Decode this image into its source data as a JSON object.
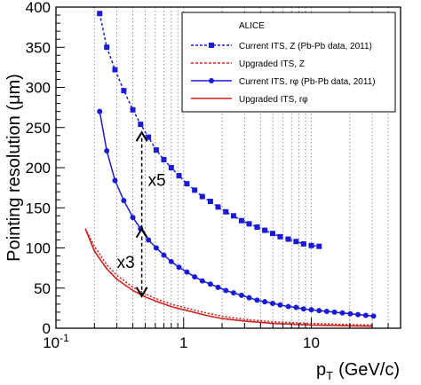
{
  "chart_data": {
    "type": "line",
    "xscale": "log",
    "xlim": [
      0.1,
      50
    ],
    "ylim": [
      0,
      400
    ],
    "xlabel": "p",
    "xlabel_sub": "T",
    "xlabel_unit": "(GeV/c)",
    "ylabel": "Pointing resolution  (μm)",
    "x_ticks": [
      {
        "value": 0.1,
        "label": "10",
        "sup": "-1"
      },
      {
        "value": 1,
        "label": "1",
        "sup": ""
      },
      {
        "value": 10,
        "label": "10",
        "sup": ""
      }
    ],
    "y_ticks": [
      0,
      50,
      100,
      150,
      200,
      250,
      300,
      350,
      400
    ],
    "grid": "vertical-dotted",
    "legend": {
      "position": "top-right",
      "header": "ALICE",
      "entries": [
        {
          "label": "Current ITS, Z (Pb-Pb data, 2011)",
          "series": 0
        },
        {
          "label": "Upgraded ITS, Z",
          "series": 1
        },
        {
          "label": "Current ITS, rφ (Pb-Pb data, 2011)",
          "series": 2
        },
        {
          "label": "Upgraded ITS, rφ",
          "series": 3
        }
      ]
    },
    "annotations": [
      {
        "text": "x5",
        "x_from": 0.47,
        "y_from": 124,
        "y_to": 244
      },
      {
        "text": "x3",
        "x_from": 0.47,
        "y_from": 40,
        "y_to": 124
      }
    ],
    "series": [
      {
        "name": "Current ITS, Z (Pb-Pb data, 2011)",
        "color": "#1a1adb",
        "dash": "dotted",
        "marker": "square",
        "x": [
          0.22,
          0.25,
          0.29,
          0.34,
          0.4,
          0.46,
          0.53,
          0.61,
          0.7,
          0.8,
          0.92,
          1.06,
          1.22,
          1.4,
          1.62,
          1.86,
          2.14,
          2.46,
          2.84,
          3.26,
          3.76,
          4.32,
          4.98,
          5.7,
          6.6,
          7.6,
          8.7,
          10.0,
          11.5
        ],
        "y": [
          392,
          350,
          322,
          296,
          272,
          254,
          238,
          222,
          210,
          200,
          190,
          180,
          172,
          164,
          158,
          151,
          145,
          140,
          134,
          130,
          126,
          122,
          118,
          114,
          111,
          108,
          105,
          103,
          102
        ]
      },
      {
        "name": "Upgraded ITS, Z",
        "color": "#d9201c",
        "dash": "dotted",
        "marker": "none",
        "x": [
          0.17,
          0.2,
          0.25,
          0.3,
          0.4,
          0.5,
          0.6,
          0.8,
          1.0,
          1.5,
          2.0,
          3.0,
          5.0,
          10.0,
          20.0,
          30.0
        ],
        "y": [
          124,
          102,
          79,
          66,
          51,
          43,
          37,
          30,
          26,
          19,
          15,
          11,
          8,
          6,
          4.5,
          4
        ]
      },
      {
        "name": "Current ITS, rφ (Pb-Pb data, 2011)",
        "color": "#1a1adb",
        "dash": "solid",
        "marker": "circle",
        "x": [
          0.22,
          0.25,
          0.29,
          0.34,
          0.4,
          0.46,
          0.53,
          0.61,
          0.7,
          0.8,
          0.92,
          1.06,
          1.22,
          1.4,
          1.62,
          1.86,
          2.14,
          2.46,
          2.84,
          3.26,
          3.76,
          4.32,
          4.98,
          5.7,
          6.6,
          7.6,
          8.7,
          10.0,
          11.5,
          13.2,
          15.2,
          17.5,
          20.2,
          23.2,
          26.7,
          30.7
        ],
        "y": [
          270,
          221,
          184,
          159,
          138,
          124,
          110,
          100,
          91,
          83,
          76,
          70,
          64,
          59,
          55,
          51,
          47,
          44,
          41,
          38,
          35,
          33,
          31,
          29,
          27,
          26,
          24,
          23,
          22,
          21,
          20,
          19,
          18,
          17,
          16,
          15
        ]
      },
      {
        "name": "Upgraded ITS, rφ",
        "color": "#d9201c",
        "dash": "solid",
        "marker": "none",
        "x": [
          0.17,
          0.2,
          0.25,
          0.3,
          0.4,
          0.5,
          0.6,
          0.8,
          1.0,
          1.5,
          2.0,
          3.0,
          5.0,
          10.0,
          20.0,
          30.0
        ],
        "y": [
          124,
          96,
          74,
          61,
          47,
          39,
          34,
          27,
          23,
          16,
          12,
          9,
          6,
          4,
          3,
          2.5
        ]
      }
    ]
  }
}
